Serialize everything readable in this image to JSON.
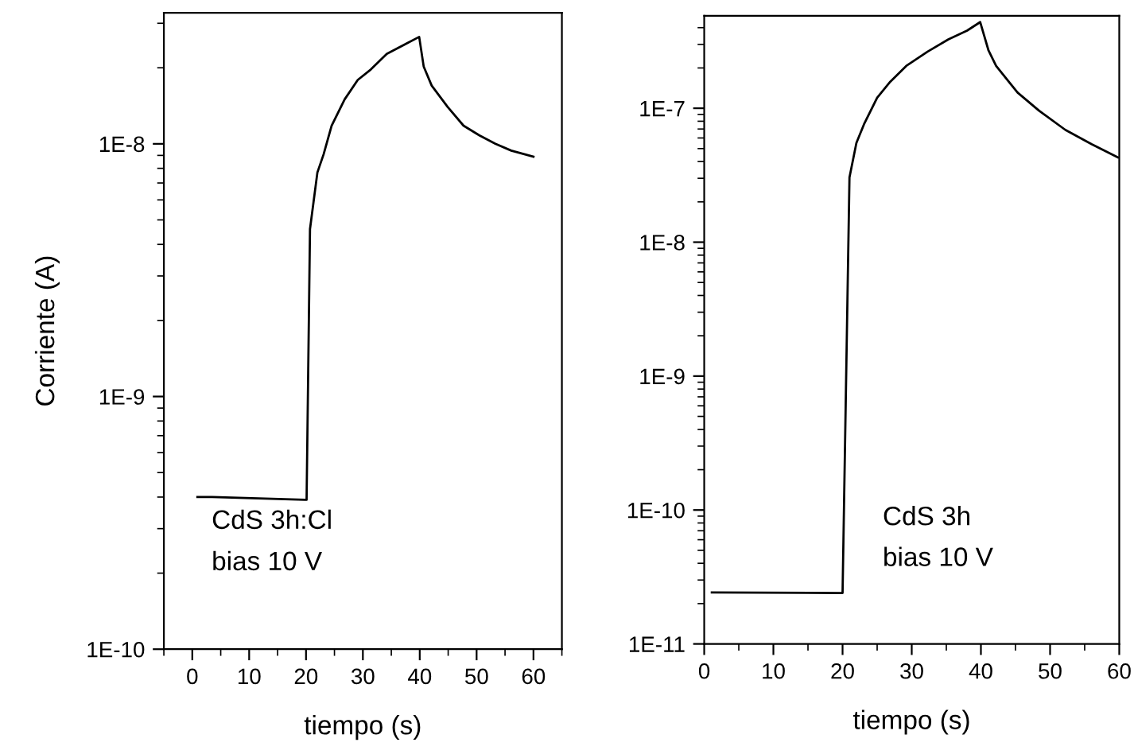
{
  "chart_data": [
    {
      "type": "line",
      "xlabel": "tiempo (s)",
      "ylabel": "Corriente (A)",
      "log": "y",
      "annotations": [
        "CdS 3h:Cl",
        "bias 10 V"
      ],
      "xlim": [
        -5,
        65
      ],
      "xticks": [
        0,
        10,
        20,
        30,
        40,
        50,
        60
      ],
      "ylim": [
        1e-10,
        3.3e-08
      ],
      "yticks": [
        {
          "value": 1e-10,
          "label": "1E-10"
        },
        {
          "value": 1e-09,
          "label": "1E-9"
        },
        {
          "value": 1e-08,
          "label": "1E-8"
        }
      ],
      "series": [
        {
          "color": "#000000",
          "x": [
            0.9,
            3.5,
            19.8,
            20.1,
            20.7,
            22,
            23.1,
            24.5,
            26.8,
            29.1,
            31.4,
            34.2,
            37,
            39.9,
            40.7,
            42.1,
            44.9,
            47.7,
            50.5,
            53.3,
            56.1,
            60
          ],
          "values": [
            4e-10,
            4e-10,
            3.9e-10,
            3.9e-10,
            4.6e-09,
            7.7e-09,
            9.1e-09,
            1.18e-08,
            1.5e-08,
            1.79e-08,
            1.97e-08,
            2.27e-08,
            2.45e-08,
            2.65e-08,
            2.02e-08,
            1.7e-08,
            1.4e-08,
            1.18e-08,
            1.08e-08,
            1e-08,
            9.4e-09,
            8.9e-09
          ]
        }
      ]
    },
    {
      "type": "line",
      "xlabel": "tiempo (s)",
      "log": "y",
      "annotations": [
        "CdS 3h",
        "bias 10 V"
      ],
      "xlim": [
        0,
        60
      ],
      "xticks": [
        0,
        10,
        20,
        30,
        40,
        50,
        60
      ],
      "ylim": [
        1e-11,
        4.9e-07
      ],
      "yticks": [
        {
          "value": 1e-11,
          "label": "1E-11"
        },
        {
          "value": 1e-10,
          "label": "1E-10"
        },
        {
          "value": 1e-09,
          "label": "1E-9"
        },
        {
          "value": 1e-08,
          "label": "1E-8"
        },
        {
          "value": 1e-07,
          "label": "1E-7"
        }
      ],
      "series": [
        {
          "color": "#000000",
          "x": [
            1.1,
            20,
            21,
            22,
            23.1,
            25,
            26.9,
            29.2,
            32.3,
            35.3,
            38,
            39.9,
            41.1,
            42.2,
            45.3,
            48.4,
            52.2,
            56,
            59.8
          ],
          "values": [
            2.42e-11,
            2.4e-11,
            3.05e-08,
            5.5e-08,
            7.6e-08,
            1.2e-07,
            1.58e-07,
            2.07e-07,
            2.65e-07,
            3.27e-07,
            3.8e-07,
            4.4e-07,
            2.7e-07,
            2.07e-07,
            1.31e-07,
            9.6e-08,
            6.9e-08,
            5.4e-08,
            4.3e-08
          ]
        }
      ]
    }
  ]
}
